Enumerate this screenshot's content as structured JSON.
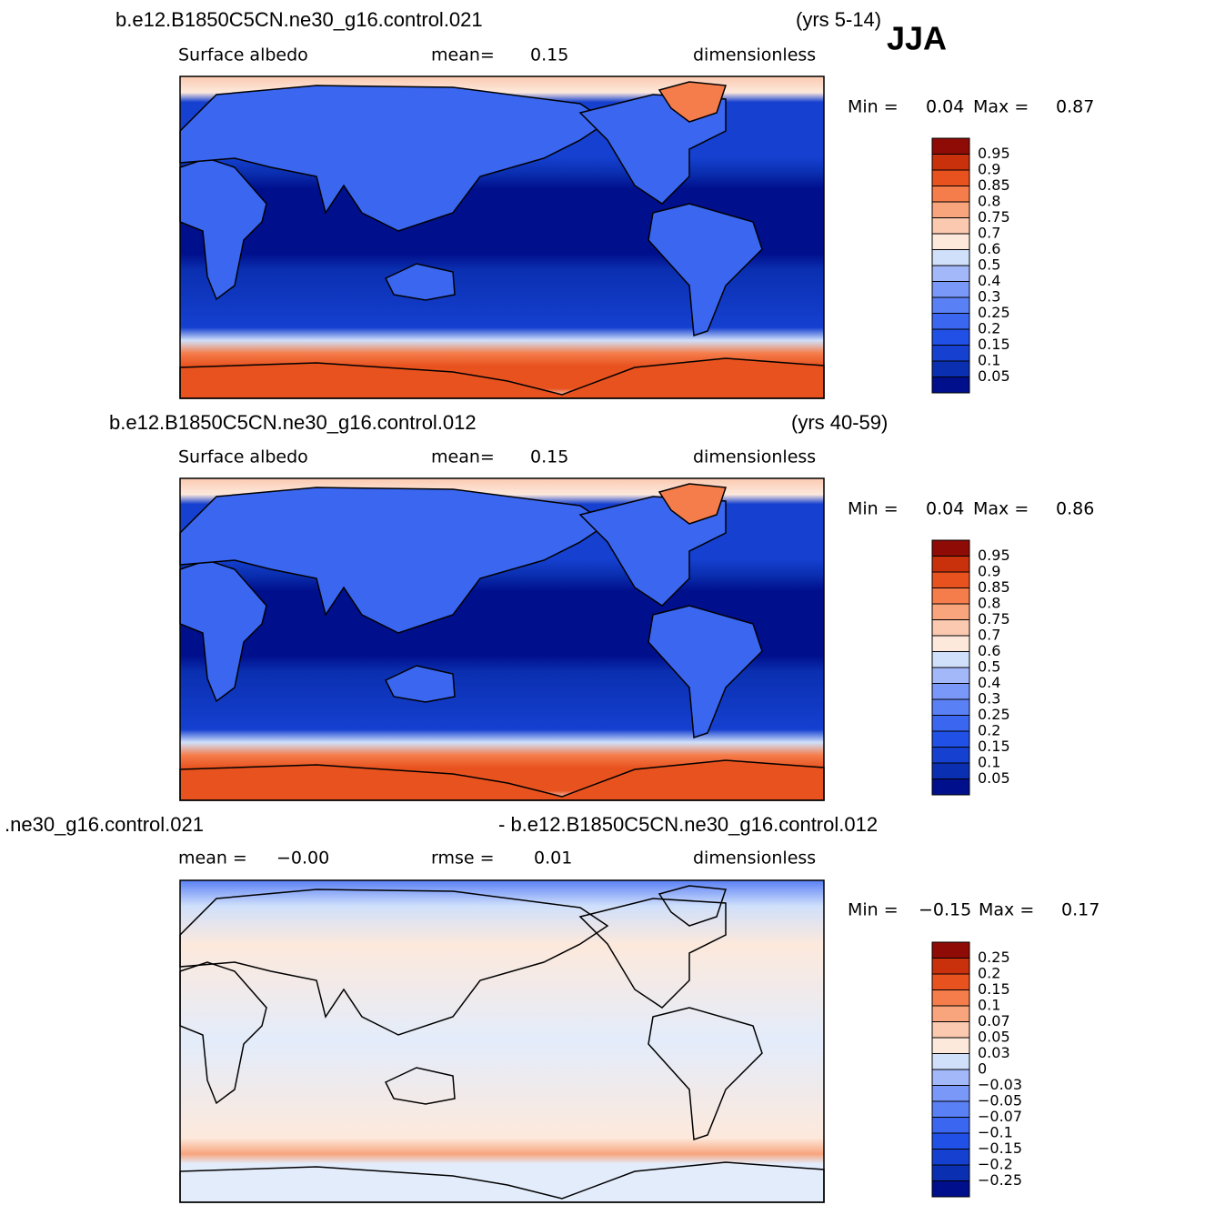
{
  "season": "JJA",
  "colorbar_colors": [
    "#000f8c",
    "#0a2fb0",
    "#1540d0",
    "#2050e6",
    "#3a66f0",
    "#5a80f5",
    "#7a98f7",
    "#a3b8f9",
    "#d0e0fb",
    "#fde9dc",
    "#fbc9b0",
    "#f8a57e",
    "#f57d4b",
    "#e8521f",
    "#c8310c",
    "#8f0b06"
  ],
  "panels": [
    {
      "case": "b.e12.B1850C5CN.ne30_g16.control.021",
      "years": "(yrs 5-14)",
      "stats": [
        {
          "label": "Surface  albedo"
        },
        {
          "label": "mean=",
          "value": 0.15
        },
        {
          "label": "dimensionless"
        }
      ],
      "min_label": "Min =",
      "min": 0.04,
      "max_label": "Max =",
      "max": 0.87,
      "levels": [
        0.95,
        0.9,
        0.85,
        0.8,
        0.75,
        0.7,
        0.6,
        0.5,
        0.4,
        0.3,
        0.25,
        0.2,
        0.15,
        0.1,
        0.05
      ]
    },
    {
      "case": "b.e12.B1850C5CN.ne30_g16.control.012",
      "years": "(yrs 40-59)",
      "stats": [
        {
          "label": "Surface  albedo"
        },
        {
          "label": "mean=",
          "value": 0.15
        },
        {
          "label": "dimensionless"
        }
      ],
      "min_label": "Min =",
      "min": 0.04,
      "max_label": "Max =",
      "max": 0.86,
      "levels": [
        0.95,
        0.9,
        0.85,
        0.8,
        0.75,
        0.7,
        0.6,
        0.5,
        0.4,
        0.3,
        0.25,
        0.2,
        0.15,
        0.1,
        0.05
      ]
    },
    {
      "case": ".ne30_g16.control.021",
      "years": "- b.e12.B1850C5CN.ne30_g16.control.012",
      "stats": [
        {
          "label": "mean =",
          "value": "−0.00"
        },
        {
          "label": "rmse =",
          "value": 0.01
        },
        {
          "label": "dimensionless"
        }
      ],
      "min_label": "Min =",
      "min": "−0.15",
      "max_label": "Max =",
      "max": 0.17,
      "levels": [
        0.25,
        0.2,
        0.15,
        0.1,
        0.07,
        0.05,
        0.03,
        0,
        "−0.03",
        "−0.05",
        "−0.07",
        "−0.1",
        "−0.15",
        "−0.2",
        "−0.25"
      ]
    }
  ]
}
